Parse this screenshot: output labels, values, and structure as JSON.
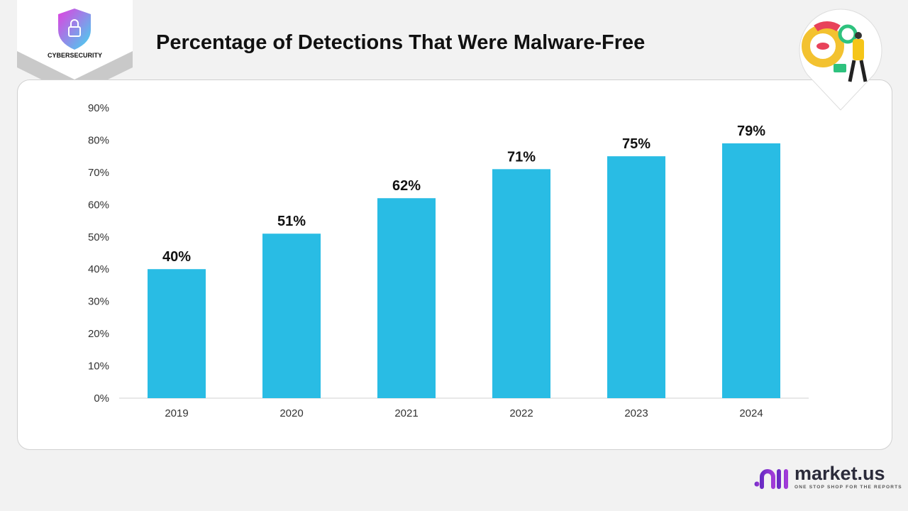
{
  "header": {
    "title": "Percentage of Detections That Were Malware-Free",
    "badge_label": "CYBERSECURITY"
  },
  "brand": {
    "name": "market.us",
    "tagline": "ONE STOP SHOP FOR THE REPORTS"
  },
  "colors": {
    "bar": "#29bce4",
    "background": "#f2f2f2"
  },
  "icons": {
    "badge": "shield-lock-icon",
    "illustration": "magnifier-analytics-icon",
    "brand": "market-us-logo-icon"
  },
  "chart_data": {
    "type": "bar",
    "title": "Percentage of Detections That Were Malware-Free",
    "categories": [
      "2019",
      "2020",
      "2021",
      "2022",
      "2023",
      "2024"
    ],
    "values": [
      40,
      51,
      62,
      71,
      75,
      79
    ],
    "value_labels": [
      "40%",
      "51%",
      "62%",
      "71%",
      "75%",
      "79%"
    ],
    "ylim": [
      0,
      90
    ],
    "yticks": [
      "0%",
      "10%",
      "20%",
      "30%",
      "40%",
      "50%",
      "60%",
      "70%",
      "80%",
      "90%"
    ],
    "xlabel": "",
    "ylabel": "",
    "grid": false,
    "legend": "none"
  }
}
